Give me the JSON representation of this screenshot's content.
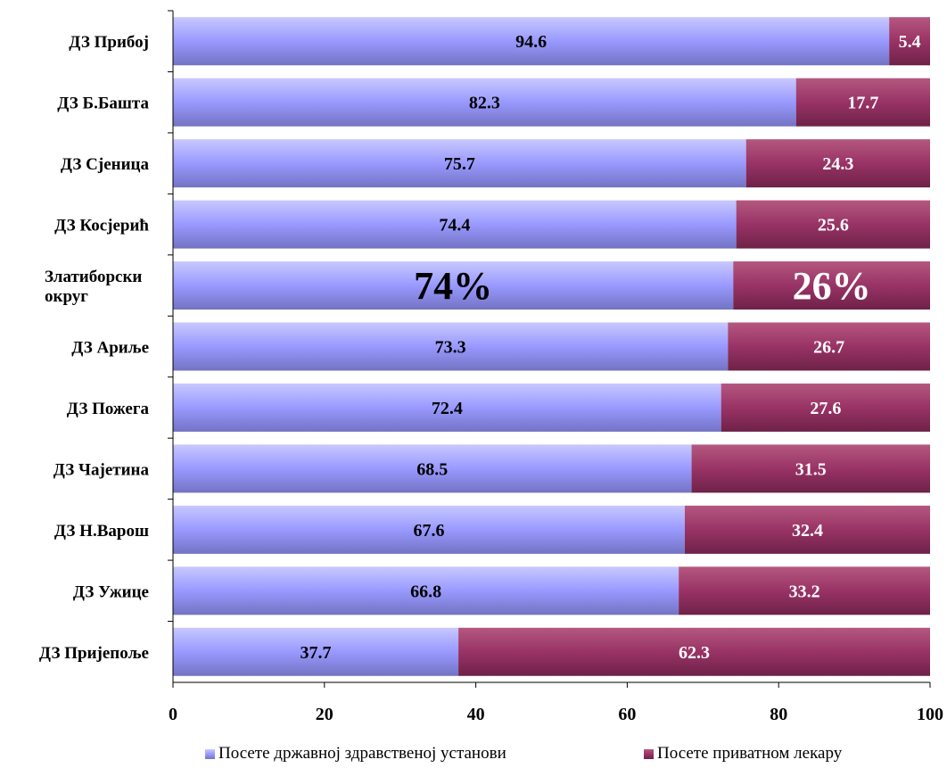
{
  "chart_data": {
    "type": "bar",
    "orientation": "horizontal",
    "stacked": true,
    "categories": [
      "ДЗ Прибој",
      "ДЗ Б.Башта",
      "ДЗ Сјеница",
      "ДЗ Косјерић",
      "Златиборски округ",
      "ДЗ Ариље",
      "ДЗ Пожега",
      "ДЗ Чајетина",
      "ДЗ Н.Варош",
      "ДЗ Ужице",
      "ДЗ Пријепоље"
    ],
    "category_lines": [
      [
        "ДЗ Прибој"
      ],
      [
        "ДЗ Б.Башта"
      ],
      [
        "ДЗ Сјеница"
      ],
      [
        "ДЗ Косјерић"
      ],
      [
        "Златиборски",
        "округ"
      ],
      [
        "ДЗ Ариље"
      ],
      [
        "ДЗ Пожега"
      ],
      [
        "ДЗ Чајетина"
      ],
      [
        "ДЗ Н.Варош"
      ],
      [
        "ДЗ Ужице"
      ],
      [
        "ДЗ Пријепоље"
      ]
    ],
    "series": [
      {
        "name": "Посете државној здравственој установи",
        "color": "#9999ff",
        "label_color": "#000000",
        "values": [
          94.6,
          82.3,
          75.7,
          74.4,
          74,
          73.3,
          72.4,
          68.5,
          67.6,
          66.8,
          37.7
        ],
        "labels": [
          "94.6",
          "82.3",
          "75.7",
          "74.4",
          "74%",
          "73.3",
          "72.4",
          "68.5",
          "67.6",
          "66.8",
          "37.7"
        ]
      },
      {
        "name": "Посете приватном лекару",
        "color": "#993366",
        "label_color": "#ffffff",
        "values": [
          5.4,
          17.7,
          24.3,
          25.6,
          26,
          26.7,
          27.6,
          31.5,
          32.4,
          33.2,
          62.3
        ],
        "labels": [
          "5.4",
          "17.7",
          "24.3",
          "25.6",
          "26%",
          "26.7",
          "27.6",
          "31.5",
          "32.4",
          "33.2",
          "62.3"
        ]
      }
    ],
    "highlight_category": "Златиборски округ",
    "xlim": [
      0,
      100
    ],
    "xticks": [
      0,
      20,
      40,
      60,
      80,
      100
    ],
    "title": "",
    "xlabel": "",
    "ylabel": "",
    "grid": false,
    "legend_position": "bottom"
  }
}
